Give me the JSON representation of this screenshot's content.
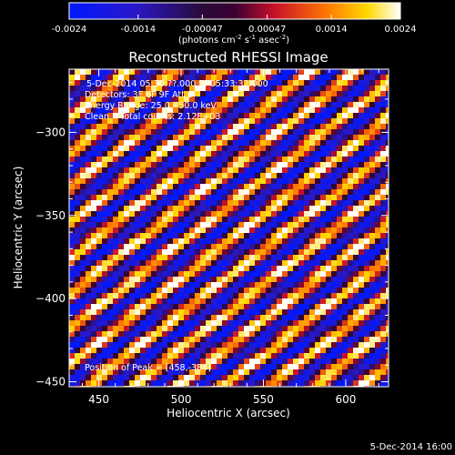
{
  "colorbar": {
    "ticks": [
      "-0.0024",
      "-0.0014",
      "-0.00047",
      "0.00047",
      "0.0014",
      "0.0024"
    ],
    "units_parts": [
      "(photons cm",
      "-2",
      " s",
      "-1",
      " asec",
      "-2",
      ")"
    ]
  },
  "chart_data": {
    "type": "heatmap",
    "title": "Reconstructed RHESSI Image",
    "xlabel": "Heliocentric X (arcsec)",
    "ylabel": "Heliocentric Y (arcsec)",
    "xlim": [
      432,
      626
    ],
    "ylim": [
      -453,
      -262
    ],
    "x_ticks": [
      450,
      500,
      550,
      600
    ],
    "y_ticks": [
      -300,
      -350,
      -400,
      -450
    ],
    "value_range": [
      -0.0024,
      0.0024
    ],
    "colormap": "blue-purple-red-orange-yellow-white",
    "pattern": "diagonal fringe stripes running lower-left to upper-right",
    "annotations": [
      "5-Dec-2014 05:30:??.000 to 05:33:32.000",
      "Detectors: 3F 6F 9F Att 0",
      "Energy Range: 25.0 - 50.0 keV",
      "Clean    Total counts: 2.12E+03"
    ],
    "peak_label": "Position of Peak = [458,-384]",
    "peak": [
      458,
      -384
    ]
  },
  "footer": {
    "timestamp": "5-Dec-2014 16:00"
  }
}
